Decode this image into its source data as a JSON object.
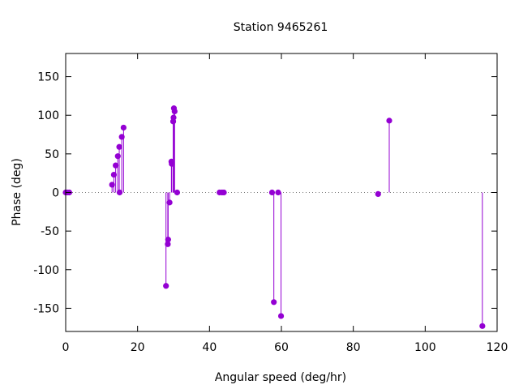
{
  "chart_data": {
    "type": "scatter",
    "style": "impulses-with-points",
    "title": "Station 9465261",
    "xlabel": "Angular speed (deg/hr)",
    "ylabel": "Phase (deg)",
    "xlim": [
      0,
      120
    ],
    "ylim": [
      -180,
      180
    ],
    "xticks": [
      0,
      20,
      40,
      60,
      80,
      100,
      120
    ],
    "yticks": [
      -150,
      -100,
      -50,
      0,
      50,
      100,
      150
    ],
    "grid": false,
    "zero_line": true,
    "color": "#9400d3",
    "series": [
      {
        "points": [
          {
            "x": 0.0,
            "y": 0
          },
          {
            "x": 0.5,
            "y": 0
          },
          {
            "x": 1.0,
            "y": 0
          },
          {
            "x": 12.9,
            "y": 10
          },
          {
            "x": 13.4,
            "y": 23
          },
          {
            "x": 13.9,
            "y": 35
          },
          {
            "x": 14.5,
            "y": 47
          },
          {
            "x": 14.9,
            "y": 59
          },
          {
            "x": 15.0,
            "y": 0
          },
          {
            "x": 15.6,
            "y": 72
          },
          {
            "x": 16.1,
            "y": 84
          },
          {
            "x": 27.9,
            "y": -121
          },
          {
            "x": 28.4,
            "y": -67
          },
          {
            "x": 28.5,
            "y": -61
          },
          {
            "x": 28.9,
            "y": -13
          },
          {
            "x": 29.4,
            "y": 40
          },
          {
            "x": 29.5,
            "y": 37
          },
          {
            "x": 29.9,
            "y": 92
          },
          {
            "x": 30.0,
            "y": 97
          },
          {
            "x": 30.1,
            "y": 109
          },
          {
            "x": 30.3,
            "y": 105
          },
          {
            "x": 31.0,
            "y": 0
          },
          {
            "x": 42.8,
            "y": 0
          },
          {
            "x": 43.5,
            "y": 0
          },
          {
            "x": 44.0,
            "y": 0
          },
          {
            "x": 57.4,
            "y": 0
          },
          {
            "x": 57.9,
            "y": -142
          },
          {
            "x": 59.1,
            "y": 0
          },
          {
            "x": 59.9,
            "y": -160
          },
          {
            "x": 86.9,
            "y": -2
          },
          {
            "x": 90.0,
            "y": 93
          },
          {
            "x": 115.9,
            "y": -173
          }
        ]
      }
    ]
  }
}
